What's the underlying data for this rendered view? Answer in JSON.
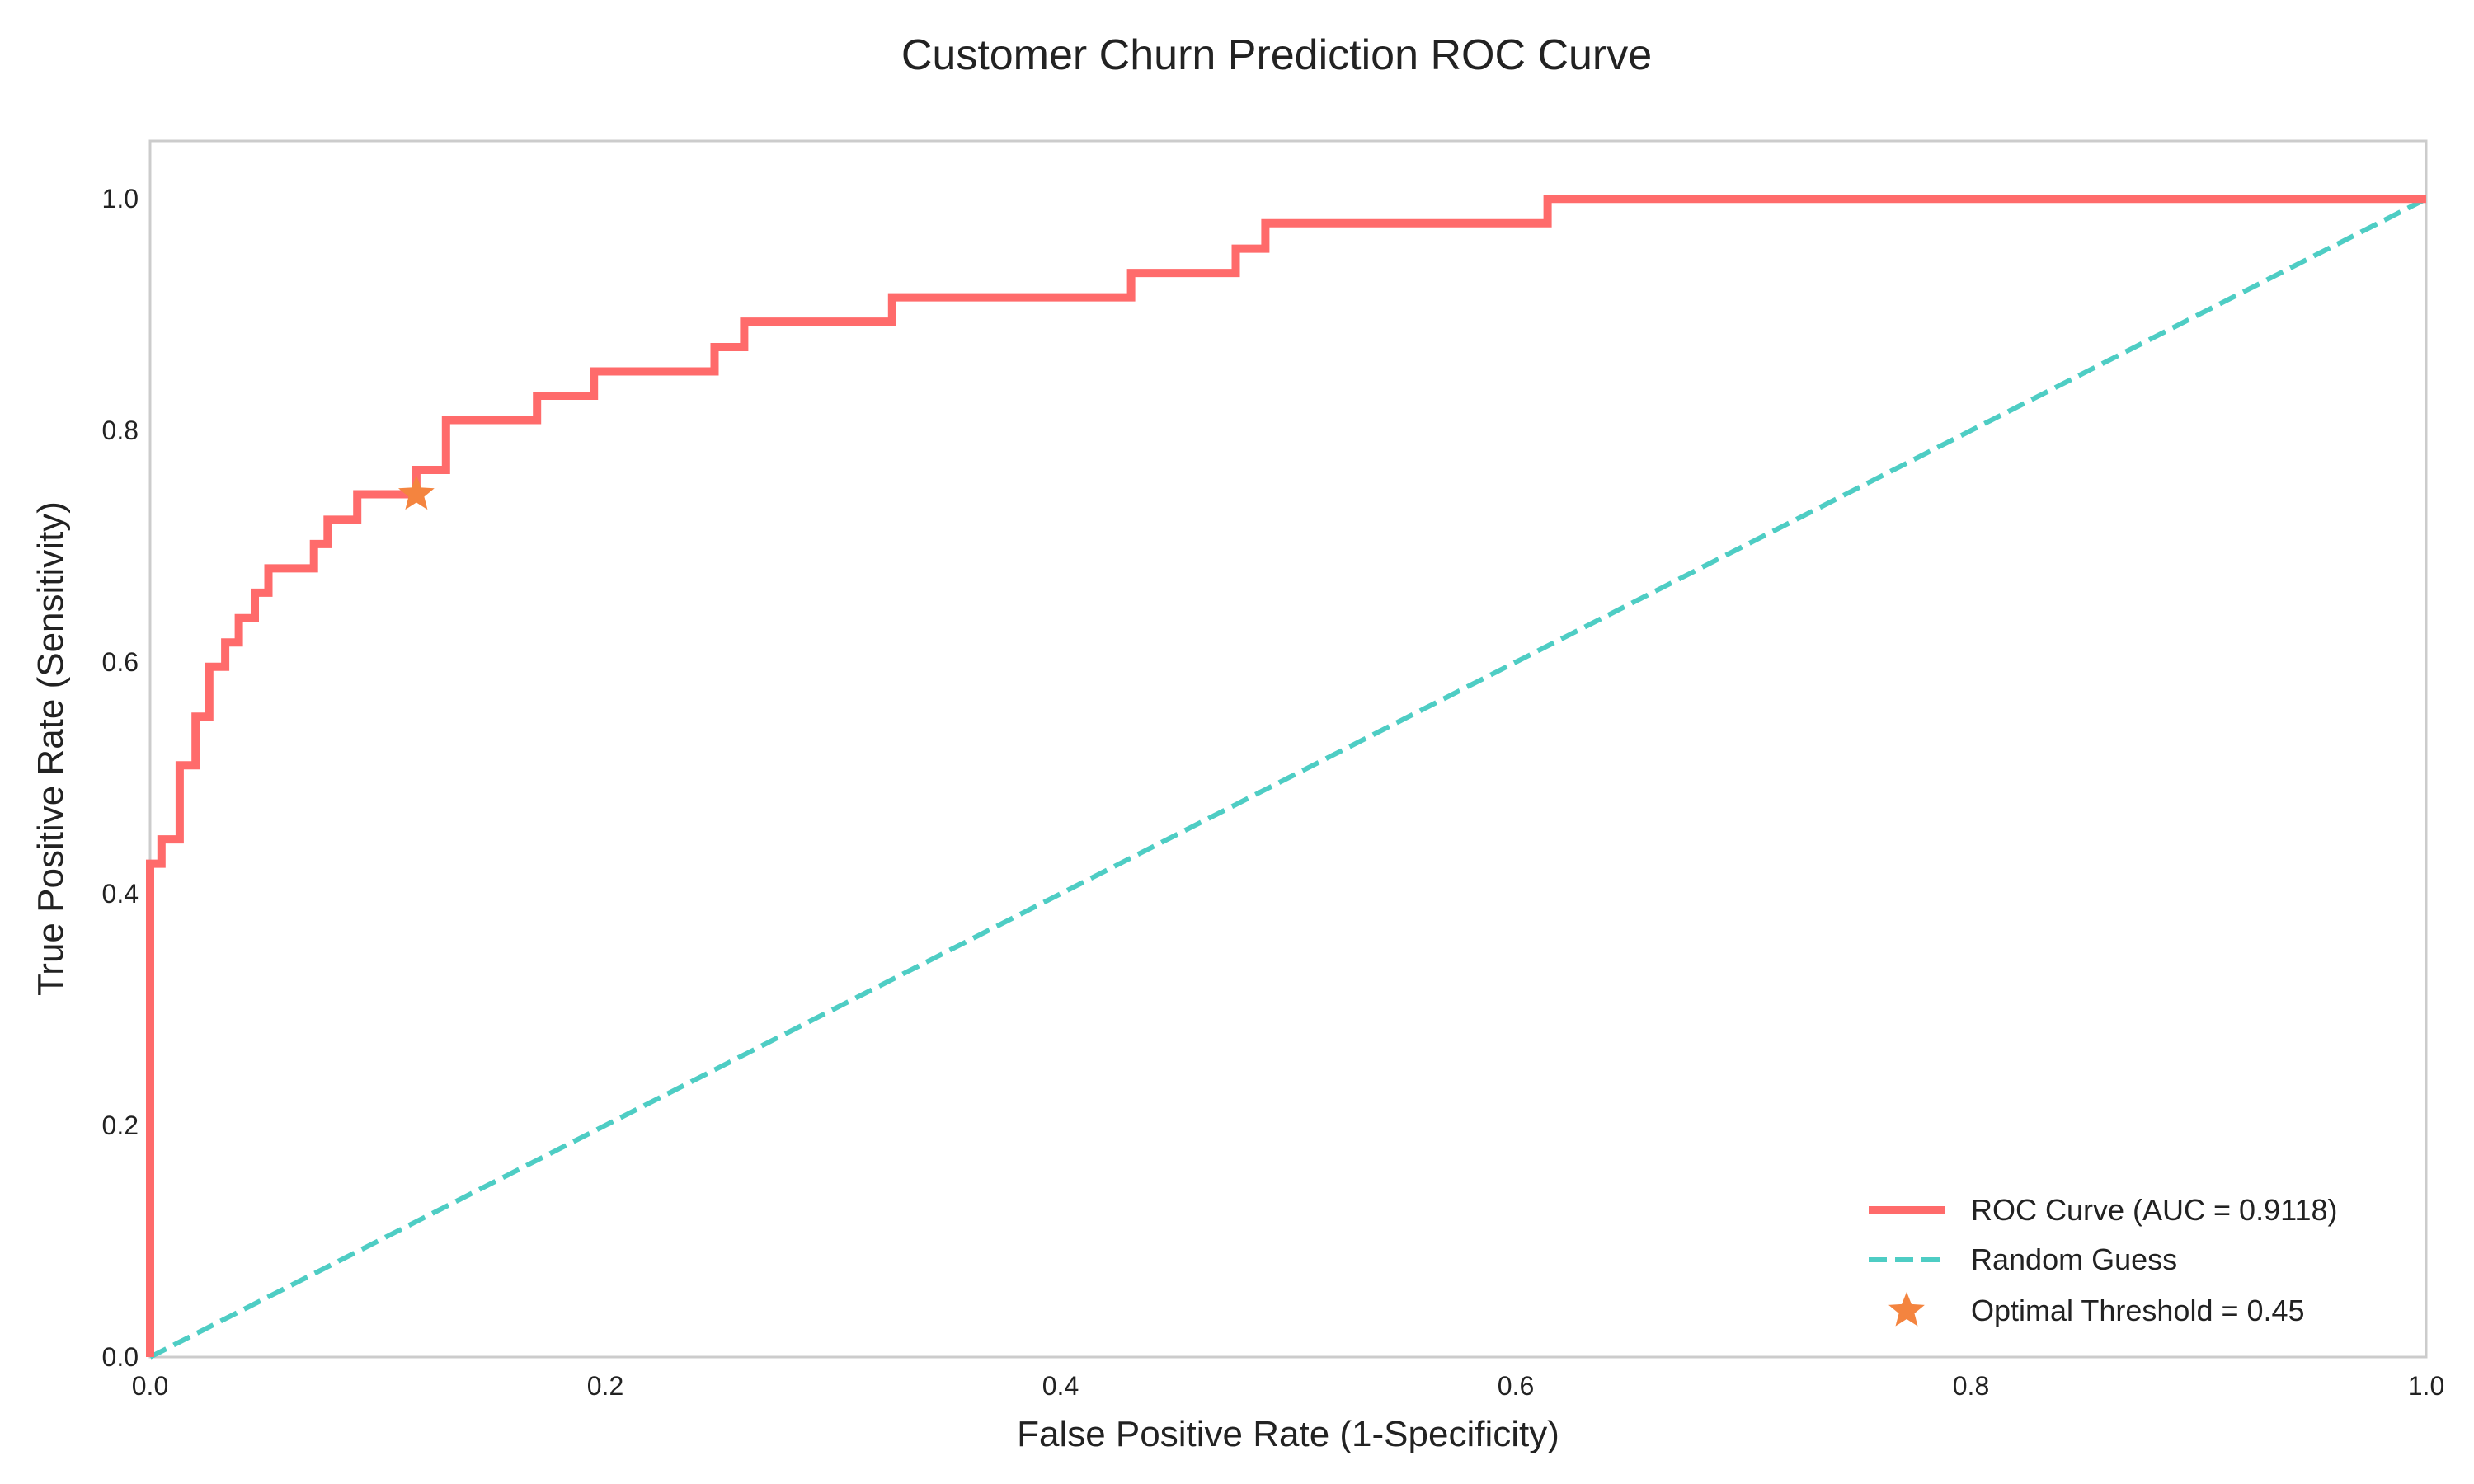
{
  "chart_data": {
    "type": "line",
    "title": "Customer Churn Prediction ROC Curve",
    "xlabel": "False Positive Rate (1-Specificity)",
    "ylabel": "True Positive Rate (Sensitivity)",
    "xlim": [
      0.0,
      1.0
    ],
    "ylim": [
      0.0,
      1.05
    ],
    "x_ticks": [
      0.0,
      0.2,
      0.4,
      0.6,
      0.8,
      1.0
    ],
    "x_tick_labels": [
      "0.0",
      "0.2",
      "0.4",
      "0.6",
      "0.8",
      "1.0"
    ],
    "y_ticks": [
      0.0,
      0.2,
      0.4,
      0.6,
      0.8,
      1.0
    ],
    "y_tick_labels": [
      "0.0",
      "0.2",
      "0.4",
      "0.6",
      "0.8",
      "1.0"
    ],
    "grid": false,
    "legend_position": "bottom-right",
    "series": [
      {
        "name": "ROC Curve (AUC = 0.9118)",
        "style": "solid-step",
        "color": "#ff6b6b",
        "x": [
          0.0,
          0.0,
          0.005,
          0.005,
          0.013,
          0.013,
          0.02,
          0.02,
          0.026,
          0.026,
          0.033,
          0.033,
          0.039,
          0.039,
          0.046,
          0.046,
          0.052,
          0.052,
          0.072,
          0.072,
          0.078,
          0.078,
          0.091,
          0.091,
          0.117,
          0.117,
          0.13,
          0.13,
          0.17,
          0.17,
          0.195,
          0.195,
          0.248,
          0.248,
          0.261,
          0.261,
          0.326,
          0.326,
          0.431,
          0.431,
          0.477,
          0.477,
          0.49,
          0.49,
          0.614,
          0.614,
          1.0
        ],
        "y": [
          0.0,
          0.426,
          0.426,
          0.447,
          0.447,
          0.511,
          0.511,
          0.553,
          0.553,
          0.596,
          0.596,
          0.617,
          0.617,
          0.638,
          0.638,
          0.66,
          0.66,
          0.681,
          0.681,
          0.702,
          0.702,
          0.723,
          0.723,
          0.745,
          0.745,
          0.766,
          0.766,
          0.809,
          0.809,
          0.83,
          0.83,
          0.851,
          0.851,
          0.872,
          0.872,
          0.894,
          0.894,
          0.915,
          0.915,
          0.936,
          0.936,
          0.957,
          0.957,
          0.979,
          0.979,
          1.0,
          1.0
        ]
      },
      {
        "name": "Random Guess",
        "style": "dashed",
        "color": "#4ecdc4",
        "x": [
          0.0,
          1.0
        ],
        "y": [
          0.0,
          1.0
        ]
      }
    ],
    "markers": [
      {
        "name": "Optimal Threshold = 0.45",
        "shape": "star",
        "color": "#f4843f",
        "x": 0.117,
        "y": 0.745
      }
    ]
  }
}
